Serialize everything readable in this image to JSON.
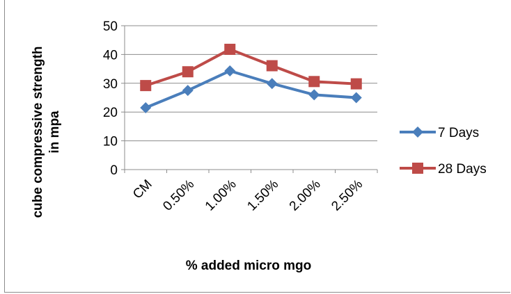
{
  "chart_data": {
    "type": "line",
    "title": "",
    "xlabel": "% added micro mgo",
    "ylabel": "cube compressive strength in mpa",
    "categories": [
      "CM",
      "0.50%",
      "1.00%",
      "1.50%",
      "2.00%",
      "2.50%"
    ],
    "yticks": [
      "0",
      "10",
      "20",
      "30",
      "40",
      "50"
    ],
    "ylim": [
      0,
      50
    ],
    "grid": "horizontal",
    "legend_position": "right",
    "series": [
      {
        "name": "7 Days",
        "values": [
          21.5,
          27.5,
          34.3,
          29.9,
          26.0,
          25.0
        ],
        "color": "#4a7ebb",
        "marker": "diamond"
      },
      {
        "name": "28 Days",
        "values": [
          29.2,
          34.0,
          41.8,
          36.1,
          30.6,
          29.8
        ],
        "color": "#be4b48",
        "marker": "square"
      }
    ]
  }
}
